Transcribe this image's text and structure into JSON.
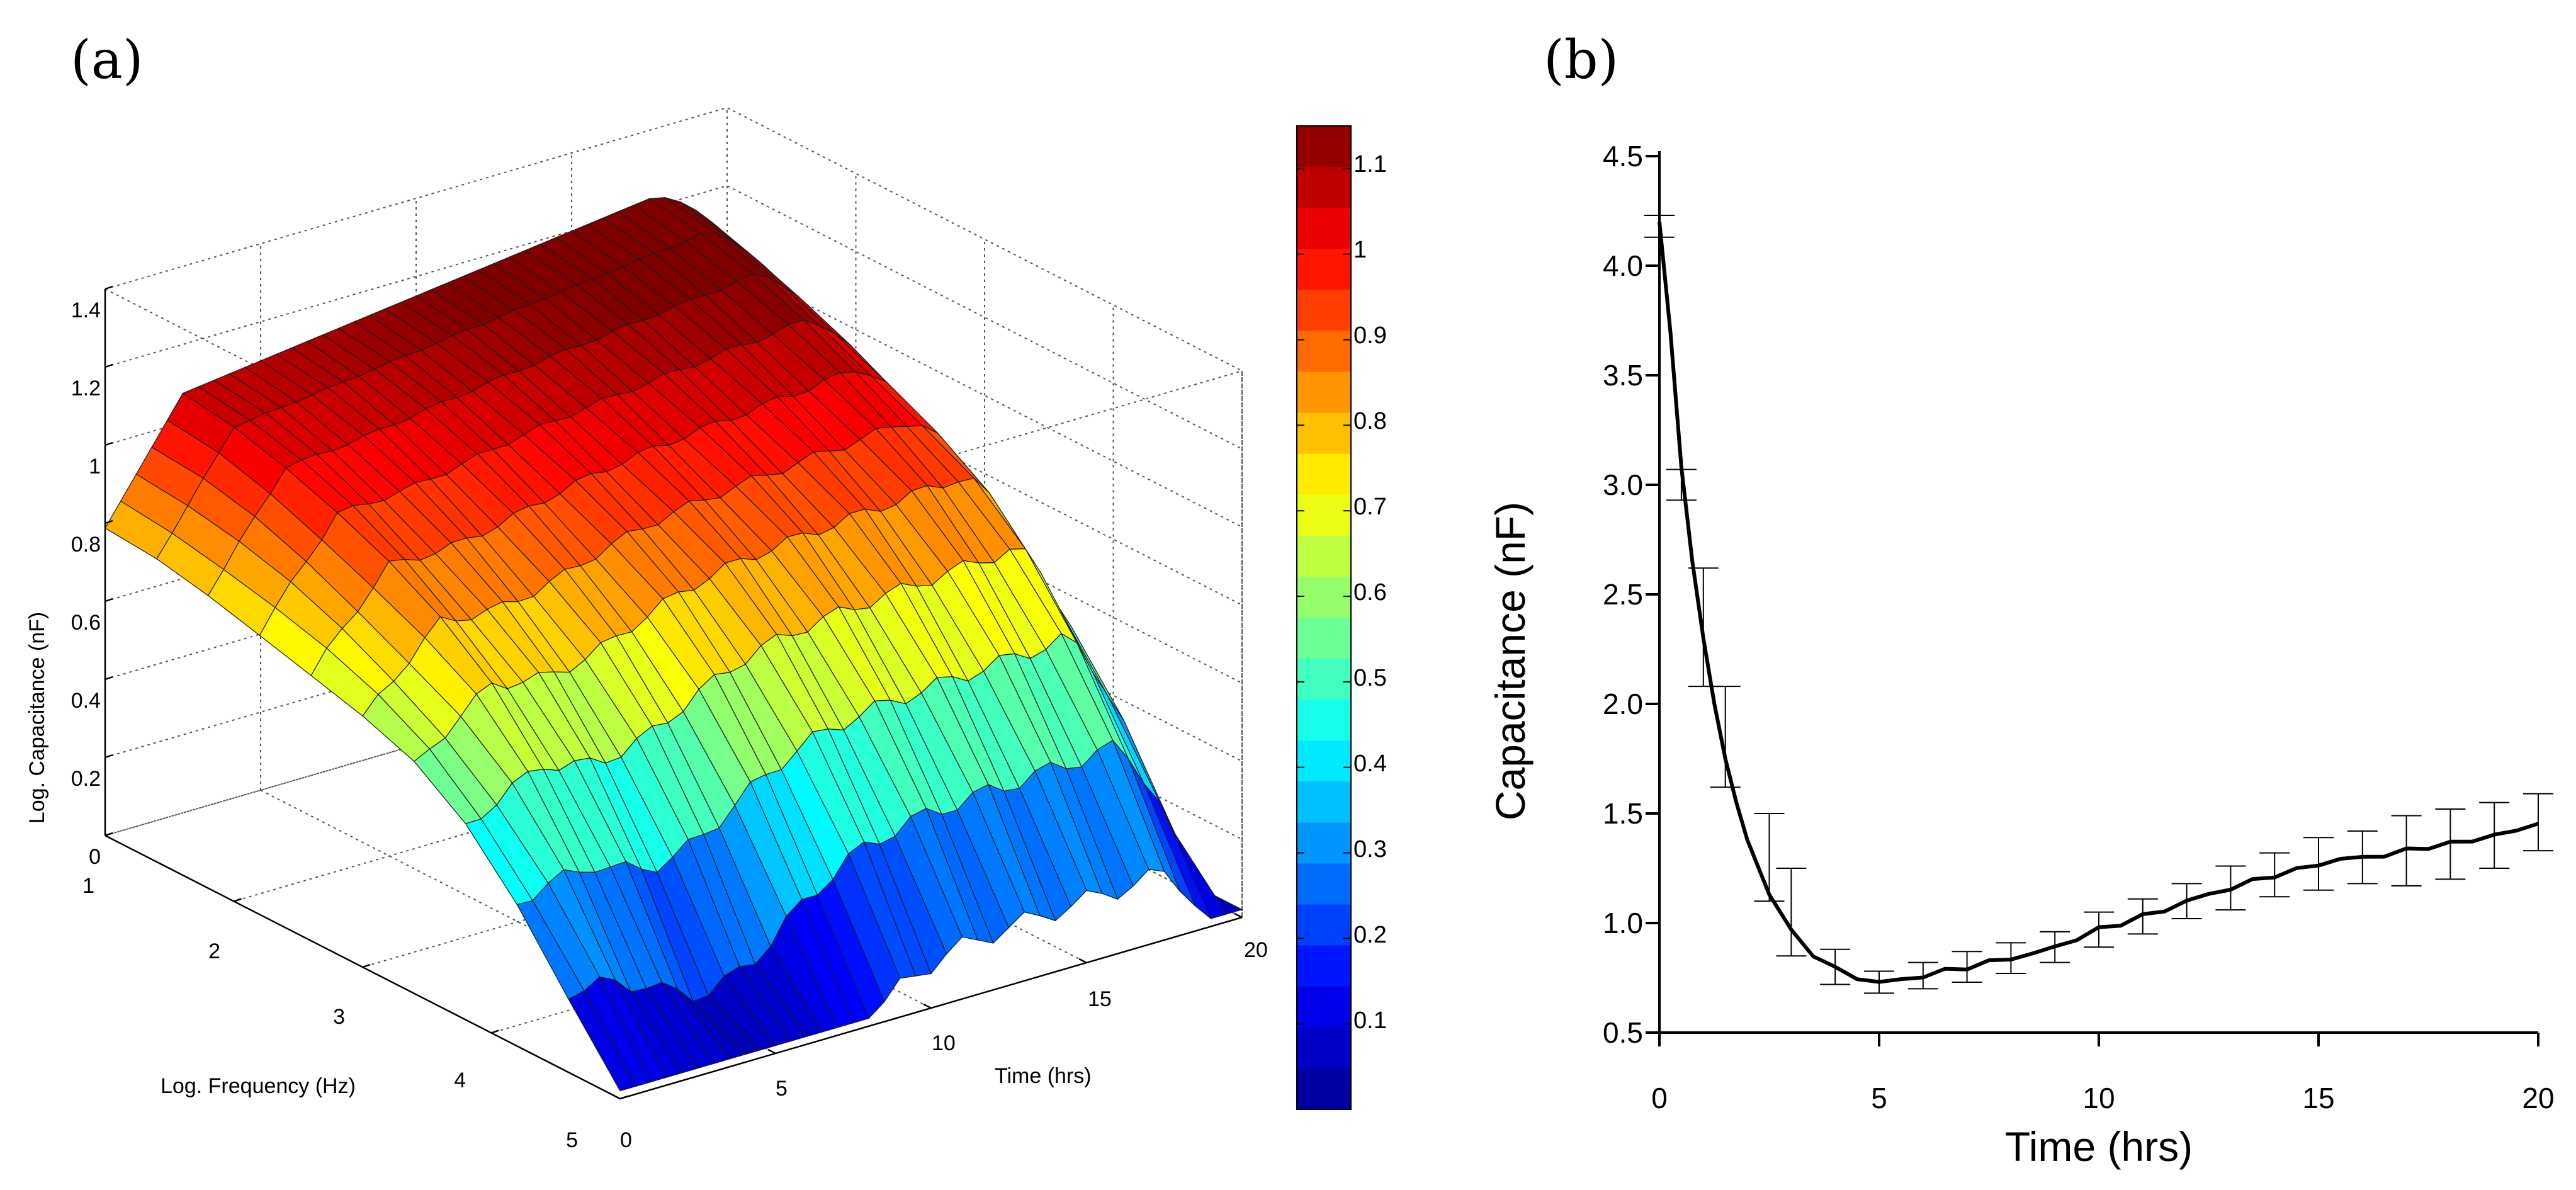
{
  "panel_a_label": "(a)",
  "panel_b_label": "(b)",
  "chart_data": [
    {
      "id": "a",
      "type": "surface",
      "xlabel": "Time (hrs)",
      "ylabel": "Log. Frequency (Hz)",
      "zlabel": "Log. Capacitance (nF)",
      "x_ticks": [
        "0",
        "5",
        "10",
        "15",
        "20"
      ],
      "y_ticks": [
        "1",
        "2",
        "3",
        "4",
        "5"
      ],
      "z_ticks": [
        "0",
        "0.2",
        "0.4",
        "0.6",
        "0.8",
        "1",
        "1.2",
        "1.4"
      ],
      "xlim": [
        0,
        20
      ],
      "ylim": [
        1,
        5
      ],
      "zlim": [
        0,
        1.4
      ],
      "colorbar_ticks": [
        "0.1",
        "0.2",
        "0.3",
        "0.4",
        "0.5",
        "0.6",
        "0.7",
        "0.8",
        "0.9",
        "1",
        "1.1"
      ],
      "colorbar_range": [
        0,
        1.15
      ],
      "colormap": [
        "#00008F",
        "#0000FF",
        "#0080FF",
        "#00FFFF",
        "#80FF80",
        "#FFFF00",
        "#FF8000",
        "#FF0000",
        "#800000"
      ],
      "grid": true
    },
    {
      "id": "b",
      "type": "line",
      "xlabel": "Time (hrs)",
      "ylabel": "Capacitance (nF)",
      "x_ticks": [
        "0",
        "5",
        "10",
        "15",
        "20"
      ],
      "y_ticks": [
        "0.5",
        "1.0",
        "1.5",
        "2.0",
        "2.5",
        "3.0",
        "3.5",
        "4.0",
        "4.5"
      ],
      "xlim": [
        0,
        20
      ],
      "ylim": [
        0.5,
        4.5
      ],
      "series": [
        {
          "name": "Capacitance",
          "x": [
            0,
            0.25,
            0.5,
            0.75,
            1,
            1.25,
            1.5,
            1.75,
            2,
            2.5,
            3,
            3.5,
            4,
            4.5,
            5,
            5.5,
            6,
            6.5,
            7,
            7.5,
            8,
            8.5,
            9,
            9.5,
            10,
            10.5,
            11,
            11.5,
            12,
            12.5,
            13,
            13.5,
            14,
            14.5,
            15,
            15.5,
            16,
            16.5,
            17,
            17.5,
            18,
            18.5,
            19,
            19.5,
            20
          ],
          "y": [
            4.2,
            3.7,
            3.08,
            2.65,
            2.3,
            2.0,
            1.75,
            1.55,
            1.38,
            1.13,
            0.97,
            0.86,
            0.79,
            0.75,
            0.73,
            0.74,
            0.76,
            0.78,
            0.8,
            0.82,
            0.84,
            0.86,
            0.89,
            0.93,
            0.97,
            1.0,
            1.03,
            1.06,
            1.1,
            1.13,
            1.16,
            1.19,
            1.22,
            1.24,
            1.27,
            1.29,
            1.3,
            1.31,
            1.33,
            1.35,
            1.36,
            1.38,
            1.4,
            1.42,
            1.46
          ]
        }
      ],
      "error_bars": {
        "x": [
          0,
          0.5,
          1,
          1.5,
          2.5,
          3,
          4,
          5,
          6,
          7,
          8,
          9,
          10,
          11,
          12,
          13,
          14,
          15,
          16,
          17,
          18,
          19,
          20
        ],
        "y": [
          4.18,
          3.0,
          2.35,
          1.85,
          1.3,
          1.05,
          0.8,
          0.73,
          0.76,
          0.8,
          0.84,
          0.89,
          0.97,
          1.03,
          1.1,
          1.16,
          1.22,
          1.27,
          1.3,
          1.33,
          1.36,
          1.4,
          1.46
        ],
        "err": [
          0.05,
          0.07,
          0.27,
          0.23,
          0.2,
          0.2,
          0.08,
          0.05,
          0.06,
          0.07,
          0.07,
          0.07,
          0.08,
          0.08,
          0.08,
          0.1,
          0.1,
          0.12,
          0.12,
          0.16,
          0.16,
          0.15,
          0.13
        ]
      }
    }
  ]
}
